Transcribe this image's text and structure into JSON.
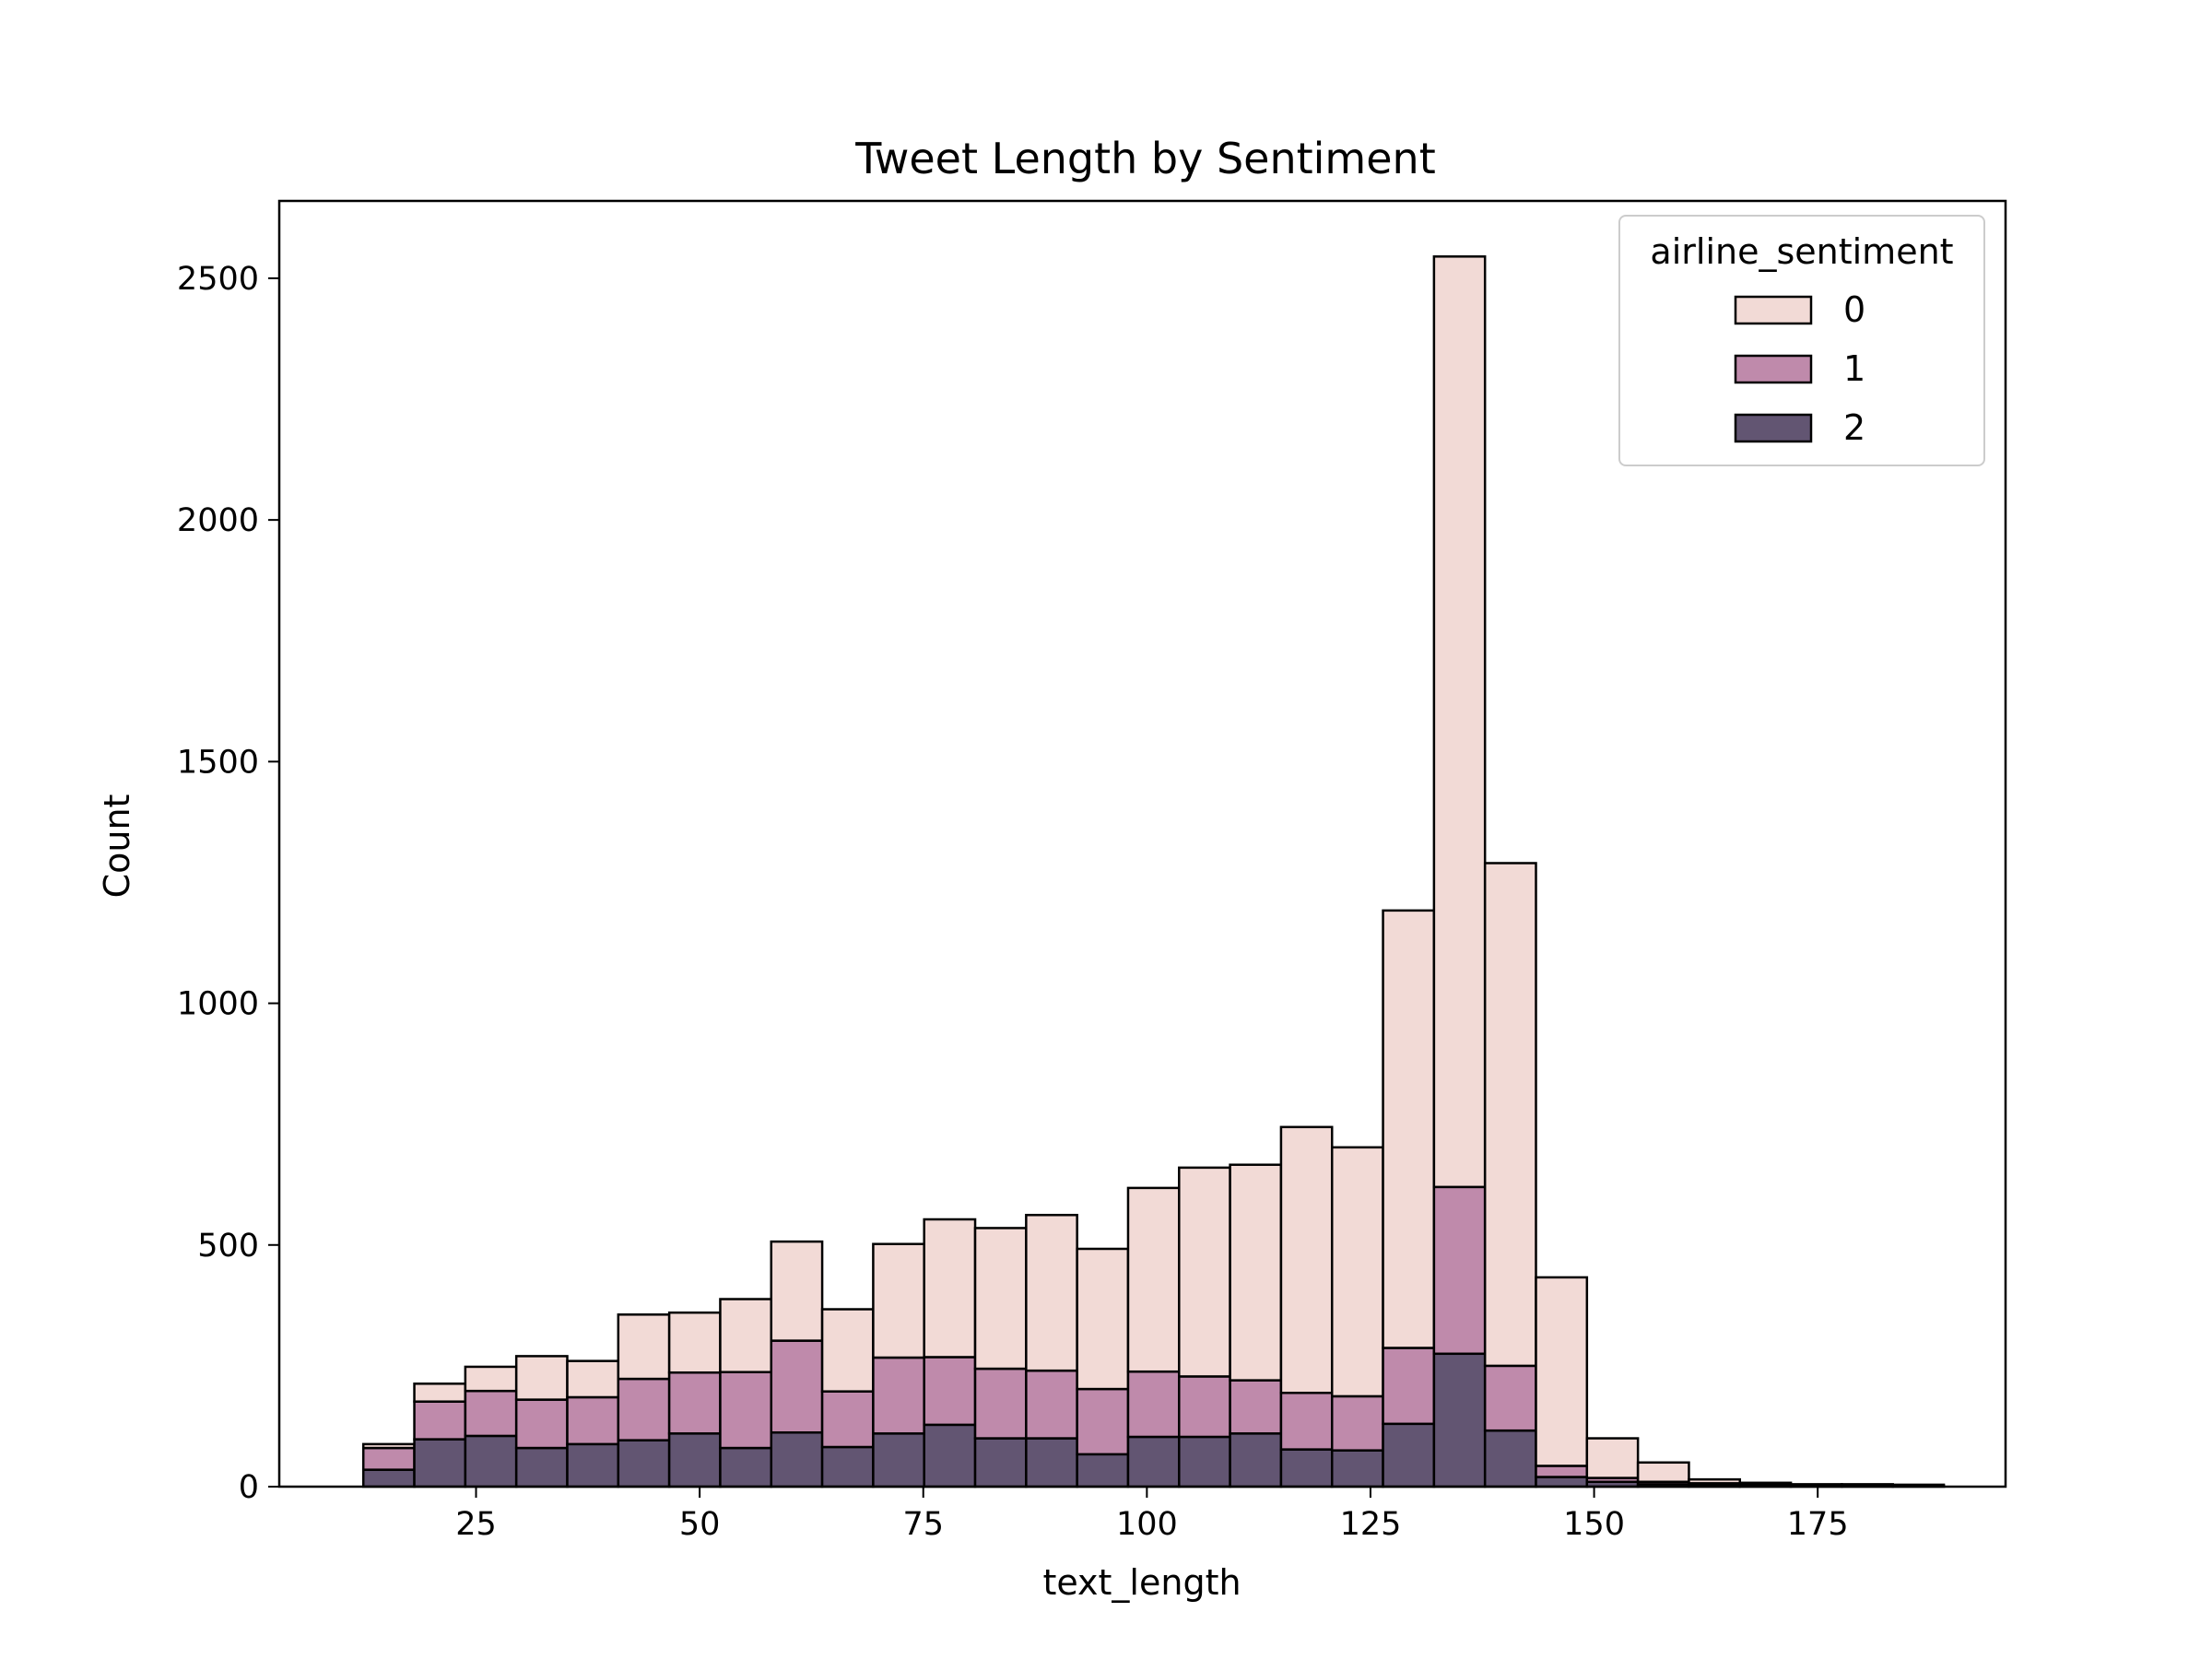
{
  "chart_data": {
    "type": "bar",
    "stacked": true,
    "title": "Tweet Length by Sentiment",
    "xlabel": "text_length",
    "ylabel": "Count",
    "xlim": [
      3,
      196
    ],
    "ylim": [
      0,
      2660
    ],
    "x_ticks": [
      25,
      50,
      75,
      100,
      125,
      150,
      175
    ],
    "y_ticks": [
      0,
      500,
      1000,
      1500,
      2000,
      2500
    ],
    "grid": false,
    "bin_start": 12.4,
    "bin_width": 5.7,
    "bins_x_start": [
      12.4,
      18.1,
      23.8,
      29.5,
      35.2,
      40.9,
      46.6,
      52.3,
      58.0,
      63.7,
      69.4,
      75.1,
      80.8,
      86.5,
      92.2,
      97.9,
      103.6,
      109.3,
      115.0,
      120.7,
      126.4,
      132.1,
      137.8,
      143.5,
      149.2,
      154.9,
      160.6,
      166.3,
      172.0,
      177.7,
      183.4
    ],
    "legend": {
      "title": "airline_sentiment",
      "position": "top-right"
    },
    "series": [
      {
        "name": "2",
        "color": "#625572",
        "values": [
          35,
          98,
          105,
          80,
          88,
          96,
          110,
          80,
          112,
          82,
          110,
          128,
          100,
          100,
          67,
          103,
          103,
          110,
          77,
          75,
          130,
          275,
          116,
          20,
          10,
          5,
          4,
          3,
          2,
          2,
          1
        ]
      },
      {
        "name": "1",
        "color": "#bf8aab",
        "values": [
          45,
          78,
          93,
          100,
          97,
          127,
          126,
          157,
          190,
          115,
          157,
          140,
          144,
          140,
          135,
          135,
          125,
          110,
          117,
          112,
          157,
          345,
          134,
          23,
          8,
          5,
          3,
          2,
          1,
          1,
          1
        ]
      },
      {
        "name": "0",
        "color": "#f2dad6",
        "values": [
          8,
          37,
          50,
          90,
          75,
          133,
          124,
          151,
          205,
          170,
          235,
          285,
          291,
          322,
          290,
          380,
          432,
          446,
          550,
          515,
          905,
          1925,
          1040,
          390,
          82,
          40,
          8,
          3,
          2,
          2,
          2
        ]
      }
    ]
  }
}
